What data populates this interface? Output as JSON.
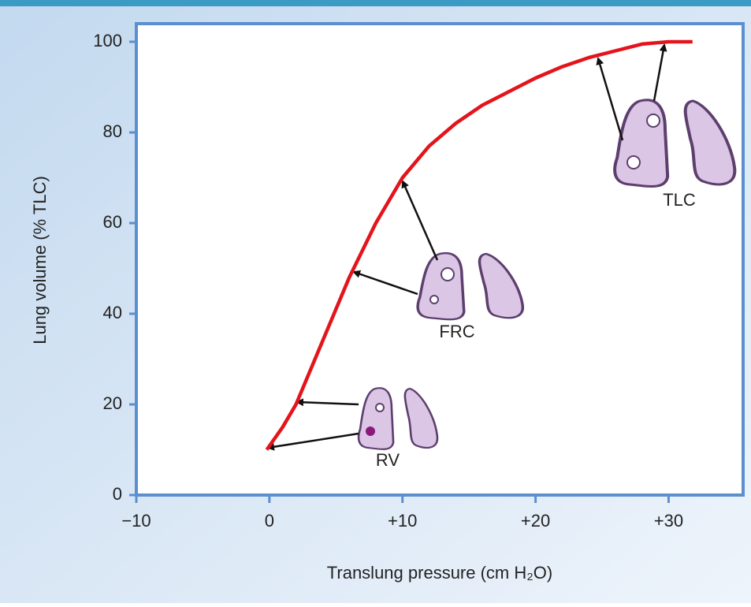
{
  "chart_data": {
    "type": "line",
    "x_label": "Translung pressure (cm H₂O)",
    "y_label": "Lung volume (% TLC)",
    "annotations": [
      "RV",
      "FRC",
      "TLC"
    ],
    "xlim": [
      -10,
      35.6
    ],
    "ylim": [
      0,
      104
    ],
    "xticks": [
      {
        "value": -10,
        "label": "−10"
      },
      0,
      {
        "value": 10,
        "label": "+10"
      },
      {
        "value": 20,
        "label": "+20"
      },
      {
        "value": 30,
        "label": "+30"
      }
    ],
    "yticks": [
      0,
      20,
      40,
      60,
      80,
      100
    ],
    "series": [
      {
        "color": "#e3141c",
        "x": [
          -0.2,
          1,
          2,
          4,
          6,
          8,
          10,
          12,
          14,
          16,
          18,
          20,
          22,
          24,
          26,
          28,
          30,
          31.8
        ],
        "values": [
          10,
          15,
          20,
          34,
          48,
          60,
          70,
          77,
          82,
          86,
          89,
          92,
          94.5,
          96.5,
          98,
          99.5,
          100,
          100
        ]
      }
    ]
  }
}
